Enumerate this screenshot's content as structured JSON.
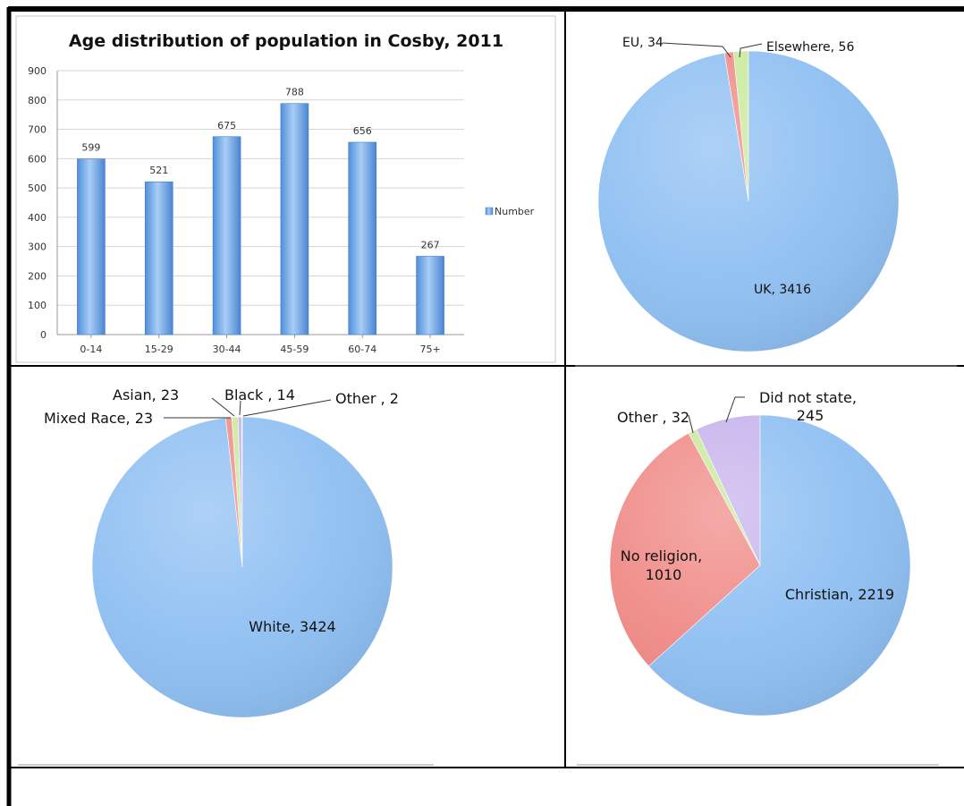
{
  "chart_data": [
    {
      "type": "bar",
      "title": "Age distribution of population in Cosby, 2011",
      "categories": [
        "0-14",
        "15-29",
        "30-44",
        "45-59",
        "60-74",
        "75+"
      ],
      "series": [
        {
          "name": "Number",
          "values": [
            599,
            521,
            675,
            788,
            656,
            267
          ]
        }
      ],
      "data_labels": [
        "599",
        "521",
        "675",
        "788",
        "656",
        "267"
      ],
      "y_ticks": [
        "0",
        "100",
        "200",
        "300",
        "400",
        "500",
        "600",
        "700",
        "800",
        "900"
      ],
      "ylim": [
        0,
        900
      ],
      "grid": true,
      "legend_position": "right",
      "bar_color": "#6fa8e8"
    },
    {
      "type": "pie",
      "slices": [
        {
          "label": "EU, 34",
          "value": 34,
          "color": "#ef8a86"
        },
        {
          "label": "Elsewhere, 56",
          "value": 56,
          "color": "#c9e99a"
        },
        {
          "label": "UK, 3416",
          "value": 3416,
          "color": "#8ebff2"
        }
      ]
    },
    {
      "type": "pie",
      "slices": [
        {
          "label": "Mixed Race, 23",
          "value": 23,
          "color": "#ef8a86"
        },
        {
          "label": "Asian, 23",
          "value": 23,
          "color": "#c9e99a"
        },
        {
          "label": "Black , 14",
          "value": 14,
          "color": "#c6b3ec"
        },
        {
          "label": "Other , 2",
          "value": 2,
          "color": "#74d0d6"
        },
        {
          "label": "White, 3424",
          "value": 3424,
          "color": "#8ebff2"
        }
      ]
    },
    {
      "type": "pie",
      "slices": [
        {
          "label": "No religion, 1010",
          "value": 1010,
          "color": "#ef8a86"
        },
        {
          "label": "Other , 32",
          "value": 32,
          "color": "#c9e99a"
        },
        {
          "label": "Did not state, 245",
          "value": 245,
          "color": "#c6b3ec"
        },
        {
          "label": "Christian, 2219",
          "value": 2219,
          "color": "#8ebff2"
        }
      ]
    }
  ]
}
